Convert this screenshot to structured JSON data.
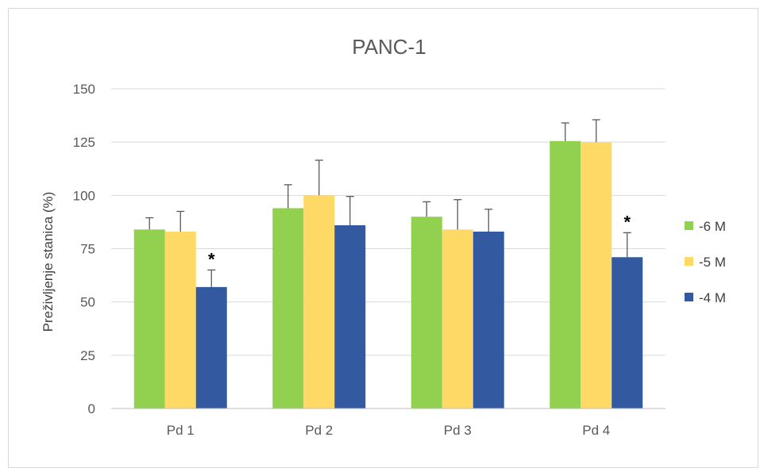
{
  "chart_data": {
    "type": "bar",
    "title": "PANC-1",
    "xlabel": "",
    "ylabel": "Preživljenje stanica (%)",
    "ylim": [
      0,
      150
    ],
    "yticks": [
      0,
      25,
      50,
      75,
      100,
      125,
      150
    ],
    "grid": true,
    "legend_position": "right",
    "categories": [
      "Pd 1",
      "Pd 2",
      "Pd 3",
      "Pd 4"
    ],
    "series": [
      {
        "name": "-6 M",
        "color": "#92d050",
        "values": [
          84,
          94,
          90,
          125.5
        ],
        "errors": [
          5.5,
          11,
          7,
          8.5
        ],
        "significance": [
          "",
          "",
          "",
          ""
        ]
      },
      {
        "name": "-5 M",
        "color": "#ffd966",
        "values": [
          83,
          100,
          84,
          125
        ],
        "errors": [
          9.5,
          16.5,
          14,
          10.5
        ],
        "significance": [
          "",
          "",
          "",
          ""
        ]
      },
      {
        "name": "-4 M",
        "color": "#335aa0",
        "values": [
          57,
          86,
          83,
          71
        ],
        "errors": [
          8,
          13.5,
          10.5,
          11.5
        ],
        "significance": [
          "*",
          "",
          "",
          "*"
        ]
      }
    ]
  }
}
